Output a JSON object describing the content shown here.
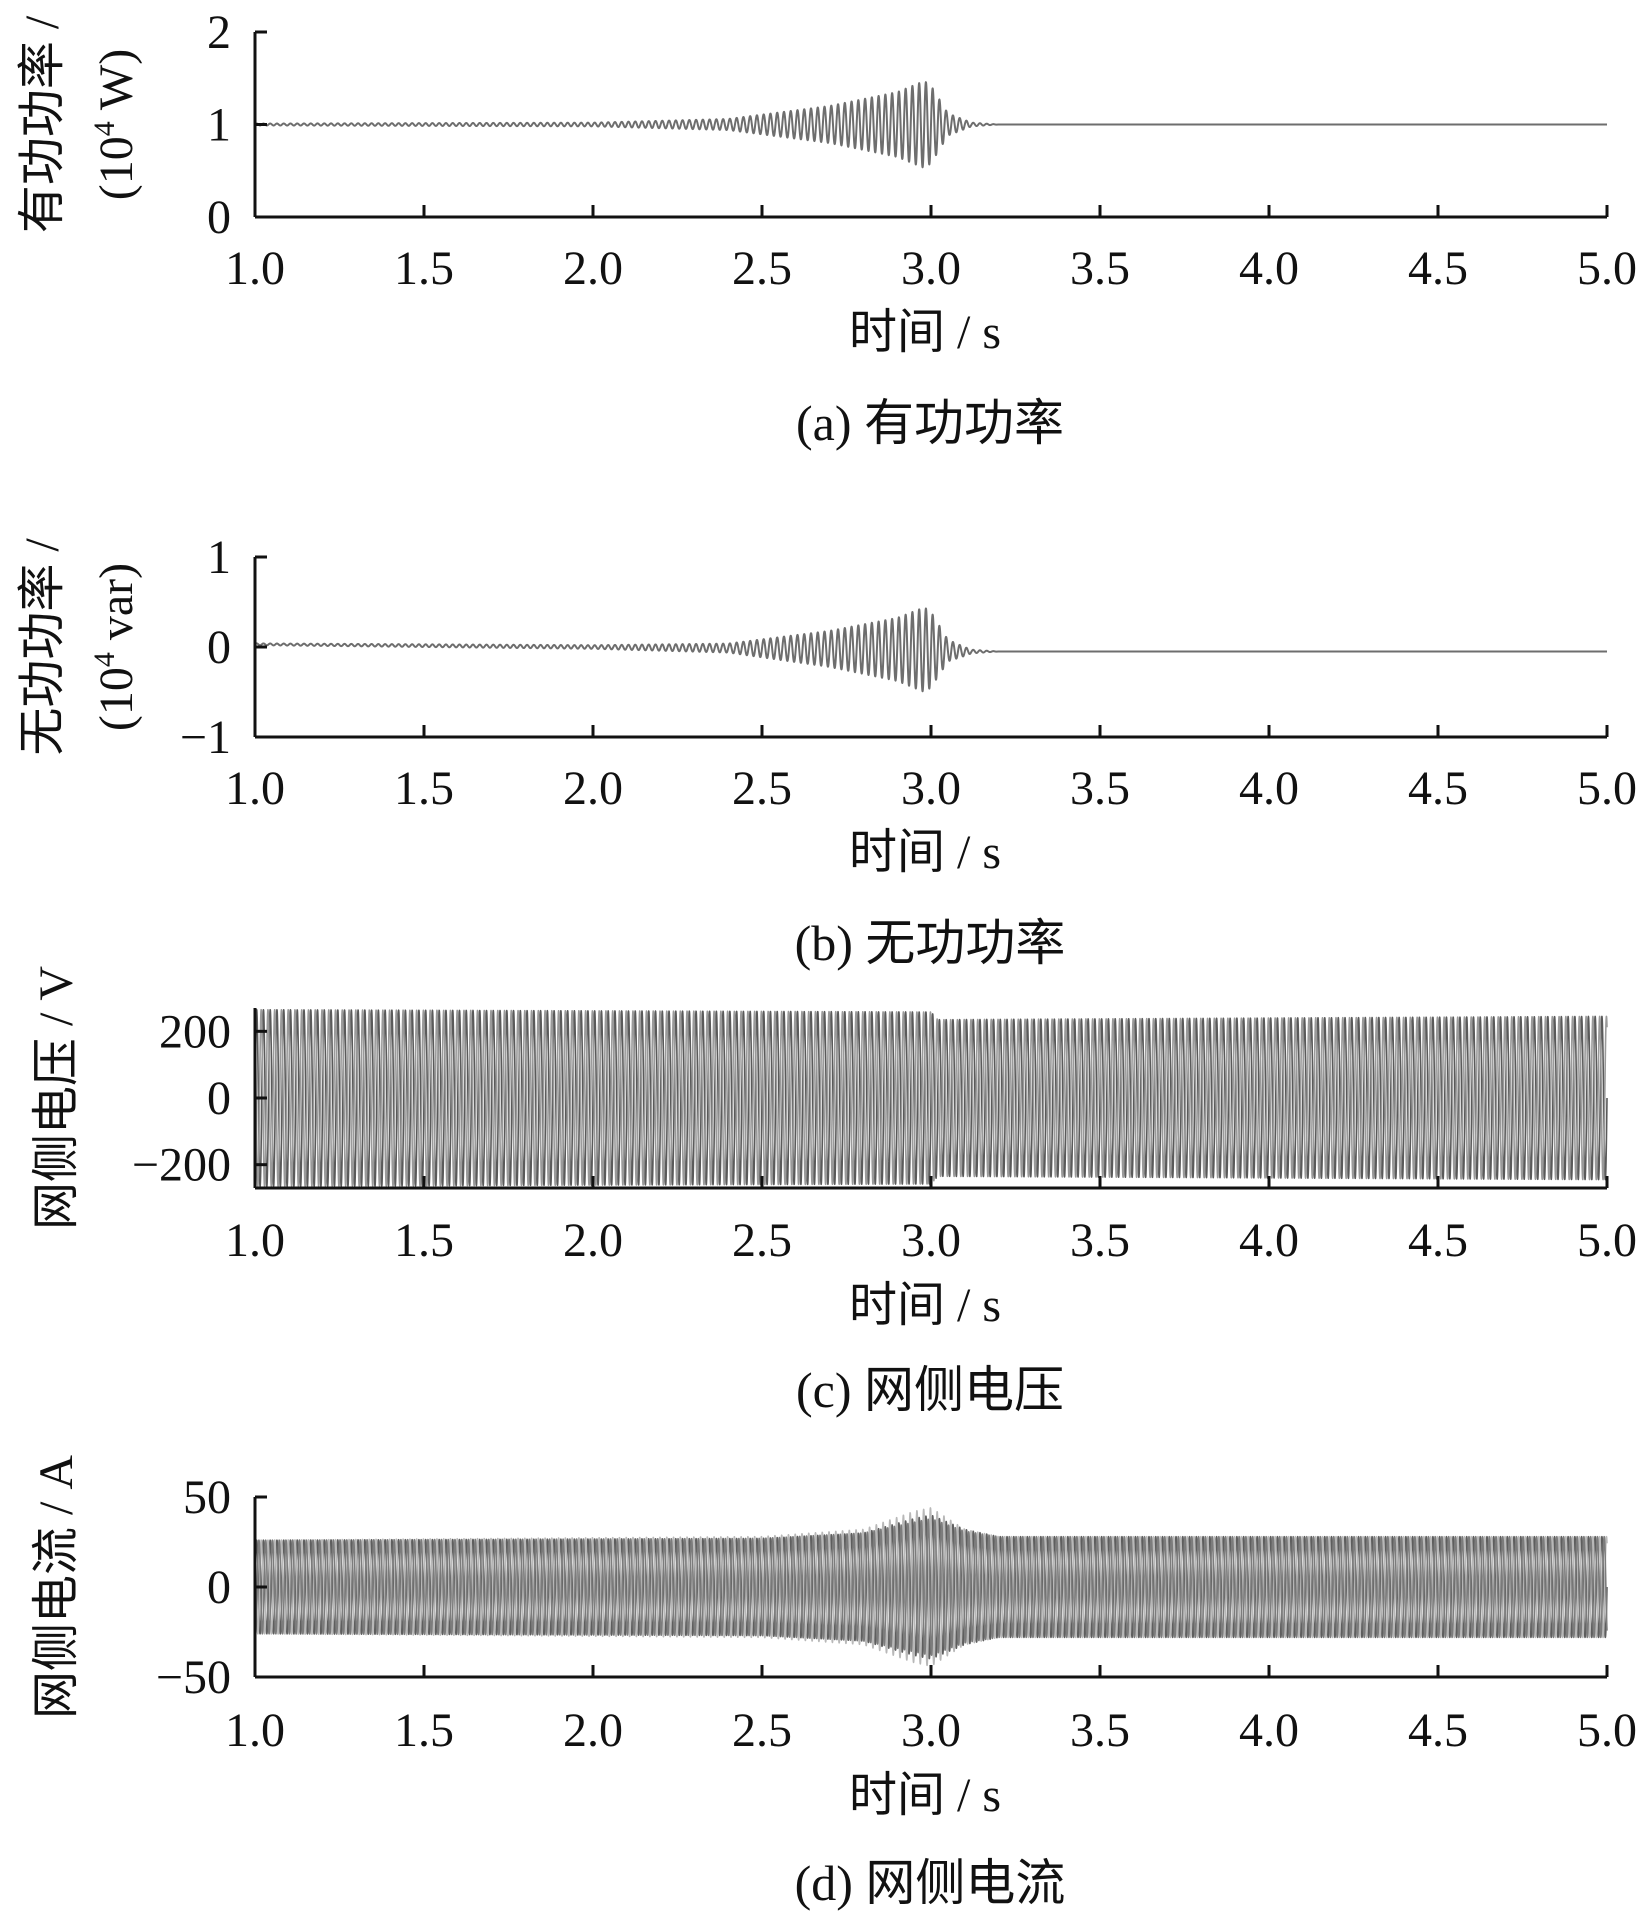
{
  "chart_data": [
    {
      "type": "line",
      "caption": "(a)  有功功率",
      "xlabel": "时间 / s",
      "ylabel_line1": "有功功率 /",
      "ylabel_line2": "(10",
      "ylabel_sup": "4",
      "ylabel_line2_tail": " W)",
      "xlim": [
        1.0,
        5.0
      ],
      "ylim": [
        0,
        2
      ],
      "xticks": [
        "1.0",
        "1.5",
        "2.0",
        "2.5",
        "3.0",
        "3.5",
        "4.0",
        "4.5",
        "5.0"
      ],
      "yticks": [
        "0",
        "1",
        "2"
      ],
      "ytick_values": [
        0,
        1,
        2
      ],
      "series": [
        {
          "kind": "oscillation",
          "color": "#6e6e6e",
          "baseline": [
            [
              1.0,
              1.0
            ],
            [
              5.0,
              1.0
            ]
          ],
          "freq_hz": 50,
          "envelope": [
            [
              1.0,
              0.01
            ],
            [
              2.0,
              0.02
            ],
            [
              2.4,
              0.06
            ],
            [
              2.7,
              0.2
            ],
            [
              2.9,
              0.35
            ],
            [
              2.98,
              0.47
            ],
            [
              3.0,
              0.42
            ],
            [
              3.05,
              0.12
            ],
            [
              3.12,
              0.02
            ],
            [
              3.2,
              0.0
            ],
            [
              5.0,
              0.0
            ]
          ]
        }
      ]
    },
    {
      "type": "line",
      "caption": "(b)  无功功率",
      "xlabel": "时间 / s",
      "ylabel_line1": "无功功率 /",
      "ylabel_line2": "(10",
      "ylabel_sup": "4",
      "ylabel_line2_tail": " var)",
      "xlim": [
        1.0,
        5.0
      ],
      "ylim": [
        -1,
        1
      ],
      "xticks": [
        "1.0",
        "1.5",
        "2.0",
        "2.5",
        "3.0",
        "3.5",
        "4.0",
        "4.5",
        "5.0"
      ],
      "yticks": [
        "−1",
        "0",
        "1"
      ],
      "ytick_values": [
        -1,
        0,
        1
      ],
      "series": [
        {
          "kind": "oscillation",
          "color": "#6e6e6e",
          "baseline": [
            [
              1.0,
              0.03
            ],
            [
              3.0,
              -0.03
            ],
            [
              3.1,
              -0.05
            ],
            [
              5.0,
              -0.05
            ]
          ],
          "freq_hz": 50,
          "envelope": [
            [
              1.0,
              0.01
            ],
            [
              2.0,
              0.02
            ],
            [
              2.4,
              0.05
            ],
            [
              2.7,
              0.2
            ],
            [
              2.9,
              0.35
            ],
            [
              2.98,
              0.47
            ],
            [
              3.0,
              0.42
            ],
            [
              3.05,
              0.12
            ],
            [
              3.12,
              0.02
            ],
            [
              3.2,
              0.0
            ],
            [
              5.0,
              0.0
            ]
          ]
        }
      ]
    },
    {
      "type": "line",
      "caption": "(c)  网侧电压",
      "xlabel": "时间 / s",
      "ylabel_line1": "网侧电压 / V",
      "xlim": [
        1.0,
        5.0
      ],
      "ylim": [
        -270,
        270
      ],
      "xticks": [
        "1.0",
        "1.5",
        "2.0",
        "2.5",
        "3.0",
        "3.5",
        "4.0",
        "4.5",
        "5.0"
      ],
      "yticks": [
        "−200",
        "0",
        "200"
      ],
      "ytick_values": [
        -200,
        0,
        200
      ],
      "series": [
        {
          "kind": "sinusoid",
          "color": "#5a5a5a",
          "freq_hz": 50,
          "phase_deg": 0,
          "amplitude": [
            [
              1.0,
              265
            ],
            [
              3.0,
              258
            ],
            [
              3.02,
              235
            ],
            [
              5.0,
              245
            ]
          ]
        },
        {
          "kind": "sinusoid",
          "color": "#9a9a9a",
          "freq_hz": 50,
          "phase_deg": 120,
          "amplitude": [
            [
              1.0,
              265
            ],
            [
              3.0,
              258
            ],
            [
              3.02,
              235
            ],
            [
              5.0,
              245
            ]
          ]
        }
      ]
    },
    {
      "type": "line",
      "caption": "(d)  网侧电流",
      "xlabel": "时间 / s",
      "ylabel_line1": "网侧电流 / A",
      "xlim": [
        1.0,
        5.0
      ],
      "ylim": [
        -50,
        50
      ],
      "xticks": [
        "1.0",
        "1.5",
        "2.0",
        "2.5",
        "3.0",
        "3.5",
        "4.0",
        "4.5",
        "5.0"
      ],
      "yticks": [
        "−50",
        "0",
        "50"
      ],
      "ytick_values": [
        -50,
        0,
        50
      ],
      "series": [
        {
          "kind": "sinusoid",
          "color": "#5e5e5e",
          "freq_hz": 50,
          "phase_deg": 0,
          "amplitude": [
            [
              1.0,
              26
            ],
            [
              2.5,
              27
            ],
            [
              2.8,
              30
            ],
            [
              2.95,
              38
            ],
            [
              3.0,
              40
            ],
            [
              3.1,
              32
            ],
            [
              3.2,
              28
            ],
            [
              5.0,
              28
            ]
          ]
        },
        {
          "kind": "sinusoid",
          "color": "#b8b8b8",
          "freq_hz": 50,
          "phase_deg": 120,
          "amplitude": [
            [
              1.0,
              26
            ],
            [
              2.5,
              28
            ],
            [
              2.8,
              32
            ],
            [
              2.95,
              42
            ],
            [
              3.0,
              44
            ],
            [
              3.1,
              32
            ],
            [
              3.2,
              28
            ],
            [
              5.0,
              28
            ]
          ]
        },
        {
          "kind": "sinusoid",
          "color": "#7c7c7c",
          "freq_hz": 50,
          "phase_deg": 240,
          "amplitude": [
            [
              1.0,
              26
            ],
            [
              2.5,
              27
            ],
            [
              2.8,
              30
            ],
            [
              2.95,
              36
            ],
            [
              3.0,
              38
            ],
            [
              3.1,
              31
            ],
            [
              3.2,
              28
            ],
            [
              5.0,
              28
            ]
          ]
        }
      ]
    }
  ]
}
